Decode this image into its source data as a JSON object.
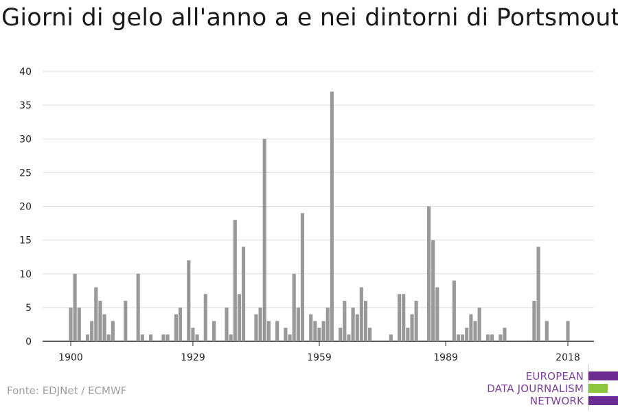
{
  "title": "Giorni di gelo all'anno a e nei dintorni di Portsmouth",
  "source": "Fonte: EDJNet / ECMWF",
  "logo": {
    "lines": [
      "EUROPEAN",
      "DATA JOURNALISM",
      "NETWORK"
    ],
    "colors": {
      "purple": "#6a2c91",
      "green": "#8cc63f"
    }
  },
  "chart_data": {
    "type": "bar",
    "title": "Giorni di gelo all'anno a e nei dintorni di Portsmouth",
    "xlabel": "",
    "ylabel": "",
    "x_ticks": [
      1900,
      1929,
      1959,
      1989,
      2018
    ],
    "y_ticks": [
      0,
      5,
      10,
      15,
      20,
      25,
      30,
      35,
      40
    ],
    "ylim": [
      0,
      40
    ],
    "xlim": [
      1900,
      2018
    ],
    "grid": true,
    "bar_color": "#999999",
    "x": [
      1900,
      1901,
      1902,
      1903,
      1904,
      1905,
      1906,
      1907,
      1908,
      1909,
      1910,
      1911,
      1912,
      1913,
      1914,
      1915,
      1916,
      1917,
      1918,
      1919,
      1920,
      1921,
      1922,
      1923,
      1924,
      1925,
      1926,
      1927,
      1928,
      1929,
      1930,
      1931,
      1932,
      1933,
      1934,
      1935,
      1936,
      1937,
      1938,
      1939,
      1940,
      1941,
      1942,
      1943,
      1944,
      1945,
      1946,
      1947,
      1948,
      1949,
      1950,
      1951,
      1952,
      1953,
      1954,
      1955,
      1956,
      1957,
      1958,
      1959,
      1960,
      1961,
      1962,
      1963,
      1964,
      1965,
      1966,
      1967,
      1968,
      1969,
      1970,
      1971,
      1972,
      1973,
      1974,
      1975,
      1976,
      1977,
      1978,
      1979,
      1980,
      1981,
      1982,
      1983,
      1984,
      1985,
      1986,
      1987,
      1988,
      1989,
      1990,
      1991,
      1992,
      1993,
      1994,
      1995,
      1996,
      1997,
      1998,
      1999,
      2000,
      2001,
      2002,
      2003,
      2004,
      2005,
      2006,
      2007,
      2008,
      2009,
      2010,
      2011,
      2012,
      2013,
      2014,
      2015,
      2016,
      2017,
      2018
    ],
    "values": [
      5,
      10,
      5,
      0,
      1,
      3,
      8,
      6,
      4,
      1,
      3,
      0,
      0,
      6,
      0,
      0,
      10,
      1,
      0,
      1,
      0,
      0,
      1,
      1,
      0,
      4,
      5,
      0,
      12,
      2,
      1,
      0,
      7,
      0,
      3,
      0,
      0,
      5,
      1,
      18,
      7,
      14,
      0,
      0,
      4,
      5,
      30,
      3,
      0,
      3,
      0,
      2,
      1,
      10,
      5,
      19,
      0,
      4,
      3,
      2,
      3,
      5,
      37,
      0,
      2,
      6,
      1,
      5,
      4,
      8,
      6,
      2,
      0,
      0,
      0,
      0,
      1,
      0,
      7,
      7,
      2,
      4,
      6,
      0,
      0,
      20,
      15,
      8,
      0,
      0,
      0,
      9,
      1,
      1,
      2,
      4,
      3,
      5,
      0,
      1,
      1,
      0,
      1,
      2,
      0,
      0,
      0,
      0,
      0,
      0,
      6,
      14,
      0,
      3,
      0,
      0,
      0,
      0,
      3
    ]
  }
}
